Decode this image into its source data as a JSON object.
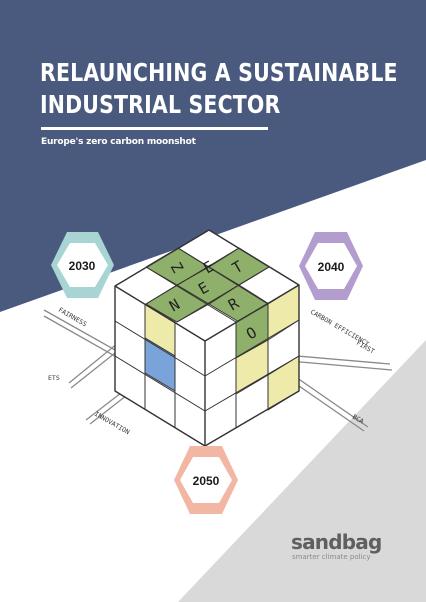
{
  "cover": {
    "title_line1": "RELAUNCHING A SUSTAINABLE",
    "title_line2": "INDUSTRIAL SECTOR",
    "subtitle": "Europe's zero carbon moonshot"
  },
  "milestones": [
    "2030",
    "2040",
    "2050"
  ],
  "cube_letters": [
    "Z",
    "E",
    "N",
    "E",
    "T",
    "R",
    "O"
  ],
  "labels": {
    "fairness": "FAIRNESS",
    "ets": "ETS",
    "innovation": "INNOVATION",
    "carbon_efficiency_1": "CARBON EFFICIENCY",
    "carbon_efficiency_2": "FIRST",
    "bca": "BCA"
  },
  "logo": {
    "name": "sandbag",
    "tagline": "smarter climate policy",
    "color": "#5f5f5f"
  },
  "colors": {
    "navy": "#4a5a7f",
    "grey": "#d9d9d9",
    "green": "#8fb06a",
    "yellow": "#eeeaaa",
    "blue": "#7aa4d9",
    "teal_hex": "#a8d4d4",
    "purple_hex": "#b39dcf",
    "salmon_hex": "#f2b7a3"
  }
}
